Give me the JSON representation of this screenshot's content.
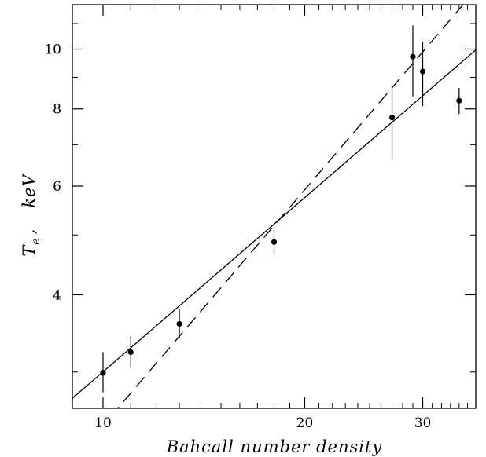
{
  "chart_data": {
    "type": "scatter",
    "xlabel": "Bahcall number density",
    "ylabel": {
      "symbol": "T",
      "subscript": "e",
      "separator": ",",
      "unit": "keV"
    },
    "x_scale": "log",
    "y_scale": "log",
    "xlim": [
      9.0,
      36.0
    ],
    "ylim": [
      2.62,
      11.8
    ],
    "x_ticks": {
      "major": [
        10,
        20,
        30
      ],
      "major_labels": [
        "10",
        "20",
        "30"
      ],
      "minor": [
        11,
        12,
        13,
        14,
        15,
        16,
        17,
        18,
        19,
        21,
        22,
        23,
        24,
        25,
        26,
        27,
        28,
        29,
        31,
        32,
        33,
        34,
        35
      ]
    },
    "y_ticks": {
      "major": [
        4,
        6,
        8,
        10
      ],
      "major_labels": [
        "4",
        "6",
        "8",
        "10"
      ],
      "minor": [
        3,
        5,
        7,
        9,
        11
      ]
    },
    "grid": false,
    "legend": "none",
    "points": [
      {
        "x": 10.0,
        "y": 2.99,
        "ylo": 2.78,
        "yhi": 3.23
      },
      {
        "x": 11.0,
        "y": 3.23,
        "ylo": 3.05,
        "yhi": 3.43
      },
      {
        "x": 13.0,
        "y": 3.59,
        "ylo": 3.4,
        "yhi": 3.8
      },
      {
        "x": 18.0,
        "y": 4.87,
        "ylo": 4.65,
        "yhi": 5.1
      },
      {
        "x": 27.0,
        "y": 7.75,
        "ylo": 6.65,
        "yhi": 8.72
      },
      {
        "x": 29.0,
        "y": 9.72,
        "ylo": 8.38,
        "yhi": 10.92
      },
      {
        "x": 30.0,
        "y": 9.2,
        "ylo": 8.08,
        "yhi": 10.28
      },
      {
        "x": 34.0,
        "y": 8.25,
        "ylo": 7.85,
        "yhi": 8.65
      }
    ],
    "fits": [
      {
        "style": "solid",
        "x": [
          9.0,
          36.0
        ],
        "y": [
          2.72,
          9.97
        ]
      },
      {
        "style": "dashed",
        "x": [
          9.0,
          36.0
        ],
        "y": [
          2.15,
          12.47
        ]
      }
    ],
    "colors": {
      "ink": "#000000",
      "background": "#ffffff"
    }
  }
}
